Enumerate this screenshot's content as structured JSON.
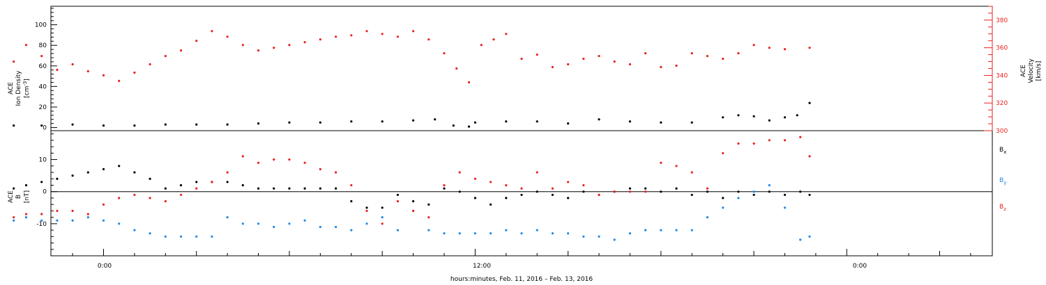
{
  "chart_data": [
    {
      "type": "scatter",
      "panel": "plasma",
      "left_axis": {
        "label_lines": [
          "ACE",
          "Ion Density"
        ],
        "unit": "[cm",
        "unit_exp": "-3",
        "unit_close": "]",
        "ylim": [
          -3,
          118
        ],
        "ticks": [
          0,
          20,
          40,
          60,
          80,
          100
        ],
        "tick_labels": [
          "0",
          "20",
          "40",
          "60",
          "80",
          "100"
        ]
      },
      "right_axis": {
        "label_lines": [
          "ACE",
          "Velocity",
          "[km/s]"
        ],
        "ylim": [
          300,
          390
        ],
        "ticks": [
          300,
          320,
          340,
          360,
          380
        ],
        "tick_labels": [
          "300",
          "320",
          "340",
          "360",
          "380"
        ],
        "color": "#e8221f"
      },
      "series": [
        {
          "axis": "left",
          "color": "#000000",
          "x": [
            -2.9,
            -2,
            -1,
            0,
            1,
            2,
            3,
            4,
            5,
            6,
            7,
            8,
            9,
            10,
            10.7,
            11.3,
            11.8,
            12,
            13,
            14,
            15,
            16,
            17,
            18,
            19,
            20,
            20.5,
            21,
            21.5,
            22,
            22.4,
            22.8
          ],
          "y": [
            2,
            2,
            3,
            2,
            2,
            3,
            3,
            3,
            4,
            5,
            5,
            6,
            6,
            7,
            8,
            2,
            1,
            5,
            6,
            6,
            4,
            8,
            6,
            5,
            5,
            10,
            12,
            11,
            7,
            10,
            12,
            24
          ]
        },
        {
          "axis": "right",
          "color": "#e8221f",
          "x": [
            -2.9,
            -2.5,
            -2,
            -1.5,
            -1,
            -0.5,
            0,
            0.5,
            1,
            1.5,
            2,
            2.5,
            3,
            3.5,
            4,
            4.5,
            5,
            5.5,
            6,
            6.5,
            7,
            7.5,
            8,
            8.5,
            9,
            9.5,
            10,
            10.5,
            11,
            11.4,
            11.8,
            12.2,
            12.6,
            13,
            13.5,
            14,
            14.5,
            15,
            15.5,
            16,
            16.5,
            17,
            17.5,
            18,
            18.5,
            19,
            19.5,
            20,
            20.5,
            21,
            21.5,
            22,
            22.8
          ],
          "y": [
            350,
            362,
            354,
            344,
            348,
            343,
            340,
            336,
            342,
            348,
            354,
            358,
            365,
            372,
            368,
            362,
            358,
            360,
            362,
            364,
            366,
            368,
            369,
            372,
            370,
            368,
            372,
            366,
            356,
            345,
            335,
            362,
            366,
            370,
            352,
            355,
            346,
            348,
            352,
            354,
            350,
            348,
            356,
            346,
            347,
            356,
            354,
            352,
            356,
            362,
            360,
            359,
            360
          ]
        }
      ],
      "x_unit": "hours",
      "xlim": [
        -1.7,
        28.7
      ]
    },
    {
      "type": "scatter",
      "panel": "magnetic",
      "left_axis": {
        "label_lines": [
          "ACE",
          "B"
        ],
        "unit": "[nT]",
        "ylim": [
          -20,
          19
        ],
        "ticks": [
          -10,
          0,
          10
        ],
        "tick_labels": [
          "-10",
          "0",
          "10"
        ]
      },
      "zero_line": true,
      "legend": [
        "B",
        "B",
        "B"
      ],
      "legend_subscripts": [
        "x",
        "y",
        "z"
      ],
      "legend_colors": [
        "#000000",
        "#1e88e5",
        "#e8221f"
      ],
      "series": [
        {
          "color": "#000000",
          "x": [
            -2.9,
            -2.5,
            -2,
            -1.5,
            -1,
            -0.5,
            0,
            0.5,
            1,
            1.5,
            2,
            2.5,
            3,
            3.5,
            4,
            4.5,
            5,
            5.5,
            6,
            6.5,
            7,
            7.5,
            8,
            8.5,
            9,
            9.5,
            10,
            10.5,
            11,
            11.5,
            12,
            12.5,
            13,
            13.5,
            14,
            14.5,
            15,
            15.5,
            16,
            16.5,
            17,
            17.5,
            18,
            18.5,
            19,
            19.5,
            20,
            20.5,
            21,
            21.5,
            22,
            22.5,
            22.8
          ],
          "y": [
            1,
            2,
            3,
            4,
            5,
            6,
            7,
            8,
            6,
            4,
            1,
            2,
            3,
            3,
            3,
            2,
            1,
            1,
            1,
            1,
            1,
            1,
            -3,
            -5,
            -5,
            -1,
            -3,
            -4,
            1,
            0,
            -2,
            -4,
            -2,
            -1,
            0,
            -1,
            -2,
            0,
            -1,
            0,
            1,
            1,
            0,
            1,
            -1,
            0,
            -2,
            0,
            -1,
            0,
            -1,
            0,
            -1
          ]
        },
        {
          "color": "#1e88e5",
          "x": [
            -2.9,
            -2.5,
            -2,
            -1.5,
            -1,
            -0.5,
            0,
            0.5,
            1,
            1.5,
            2,
            2.5,
            3,
            3.5,
            4,
            4.5,
            5,
            5.5,
            6,
            6.5,
            7,
            7.5,
            8,
            8.5,
            9,
            9.5,
            10,
            10.5,
            11,
            11.5,
            12,
            12.5,
            13,
            13.5,
            14,
            14.5,
            15,
            15.5,
            16,
            16.5,
            17,
            17.5,
            18,
            18.5,
            19,
            19.5,
            20,
            20.5,
            21,
            21.5,
            22,
            22.5,
            22.8
          ],
          "y": [
            -9,
            -8,
            -9,
            -9,
            -9,
            -8,
            -9,
            -10,
            -12,
            -13,
            -14,
            -14,
            -14,
            -14,
            -8,
            -10,
            -10,
            -11,
            -10,
            -9,
            -11,
            -11,
            -12,
            -10,
            -8,
            -12,
            -6,
            -12,
            -13,
            -13,
            -13,
            -13,
            -12,
            -13,
            -12,
            -13,
            -13,
            -14,
            -14,
            -15,
            -13,
            -12,
            -12,
            -12,
            -12,
            -8,
            -5,
            -2,
            0,
            2,
            -5,
            -15,
            -14
          ]
        },
        {
          "color": "#e8221f",
          "x": [
            -2.9,
            -2.5,
            -2,
            -1.5,
            -1,
            -0.5,
            0,
            0.5,
            1,
            1.5,
            2,
            2.5,
            3,
            3.5,
            4,
            4.5,
            5,
            5.5,
            6,
            6.5,
            7,
            7.5,
            8,
            8.5,
            9,
            9.5,
            10,
            10.5,
            11,
            11.5,
            12,
            12.5,
            13,
            13.5,
            14,
            14.5,
            15,
            15.5,
            16,
            16.5,
            17,
            17.5,
            18,
            18.5,
            19,
            19.5,
            20,
            20.5,
            21,
            21.5,
            22,
            22.5,
            22.8
          ],
          "y": [
            -8,
            -7,
            -7,
            -6,
            -6,
            -7,
            -4,
            -2,
            -1,
            -2,
            -3,
            -1,
            1,
            3,
            6,
            11,
            9,
            10,
            10,
            9,
            7,
            6,
            2,
            -6,
            -10,
            -3,
            -6,
            -8,
            2,
            6,
            4,
            3,
            2,
            1,
            6,
            1,
            3,
            2,
            -1,
            0,
            0,
            0,
            9,
            8,
            6,
            1,
            12,
            15,
            15,
            16,
            16,
            17,
            11
          ]
        }
      ],
      "x_unit": "hours",
      "xlim": [
        -1.7,
        28.7
      ]
    }
  ],
  "x_axis": {
    "tick_labels": [
      "0:00",
      "12:00",
      "0:00"
    ],
    "tick_hours": [
      0,
      12,
      24
    ],
    "title": "hours:minutes, Feb. 11, 2016 – Feb. 13, 2016"
  }
}
